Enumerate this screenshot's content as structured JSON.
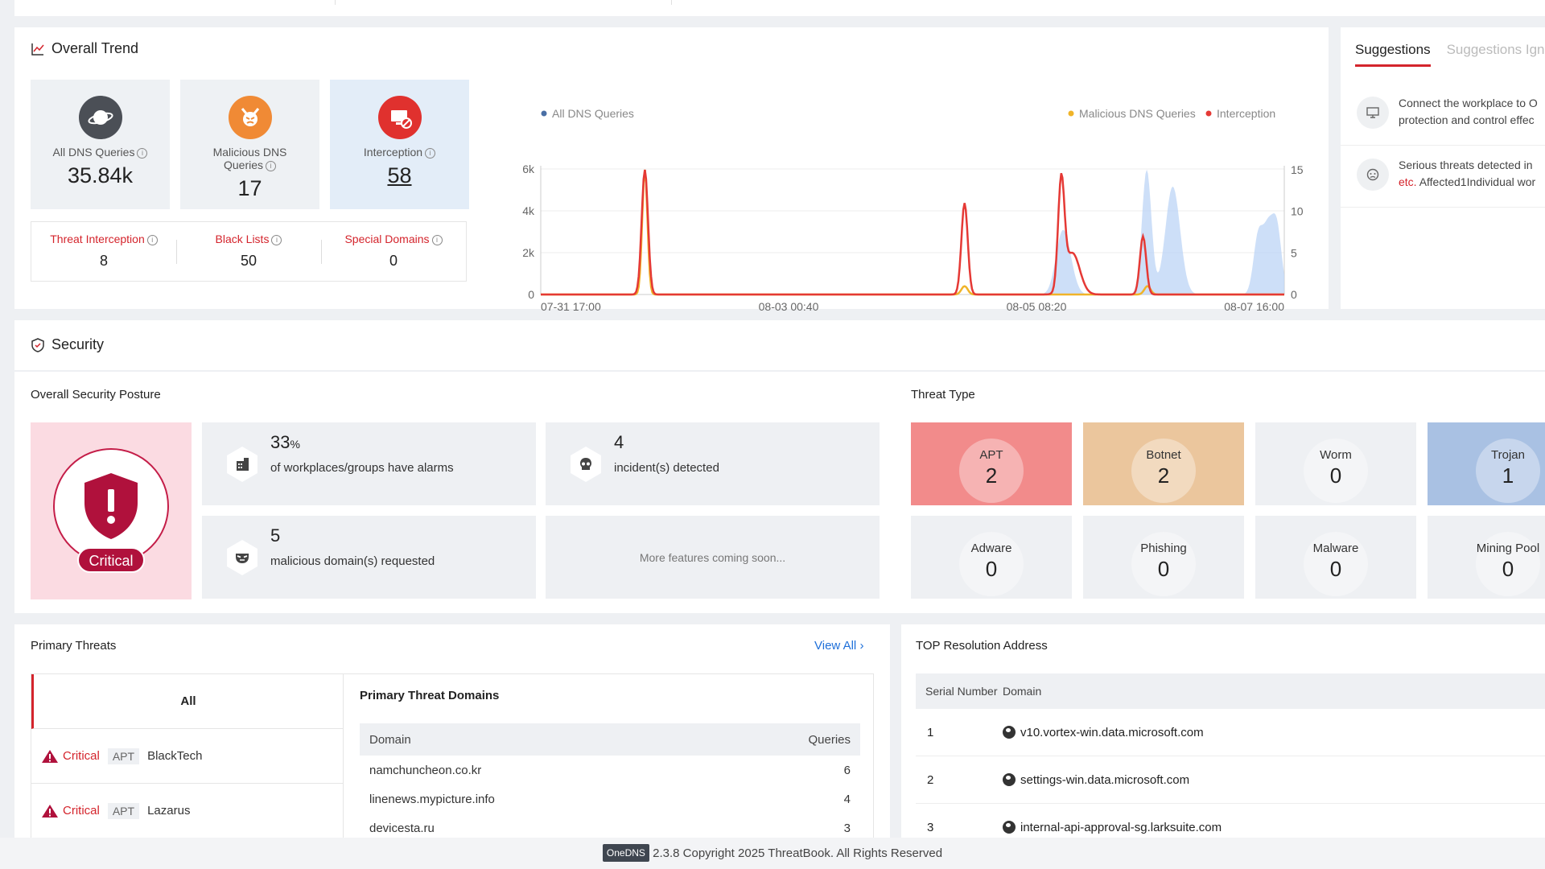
{
  "overall_trend": {
    "title": "Overall Trend",
    "kpis": [
      {
        "label": "All DNS Queries",
        "value": "35.84k",
        "icon": "planet-icon",
        "color": "#4b4f56"
      },
      {
        "label": "Malicious DNS Queries",
        "value": "17",
        "icon": "devil-icon",
        "color": "#f08a35"
      },
      {
        "label": "Interception",
        "value": "58",
        "icon": "blocked-monitor-icon",
        "color": "#e0312e"
      }
    ],
    "sub_kpis": [
      {
        "label": "Threat Interception",
        "value": "8"
      },
      {
        "label": "Black Lists",
        "value": "50"
      },
      {
        "label": "Special Domains",
        "value": "0"
      }
    ]
  },
  "chart_data": {
    "type": "line",
    "legend": [
      "All DNS Queries",
      "Malicious DNS Queries",
      "Interception"
    ],
    "colors": {
      "all": "#4a6fa5",
      "malicious": "#f0b429",
      "interception": "#e53935",
      "area": "#bcd4f5"
    },
    "x_ticks": [
      "07-31 17:00",
      "08-03 00:40",
      "08-05 08:20",
      "08-07 16:00"
    ],
    "y_left_ticks": [
      "0",
      "2k",
      "4k",
      "6k"
    ],
    "y_right_ticks": [
      "0",
      "5",
      "10",
      "15"
    ],
    "ylim_left": [
      0,
      6000
    ],
    "ylim_right": [
      0,
      18
    ],
    "xlim": [
      0,
      100
    ],
    "all_dns_peaks": [
      [
        14,
        0,
        1.4
      ],
      [
        68.5,
        0,
        1.5
      ],
      [
        70,
        6,
        1.2
      ],
      [
        71,
        3,
        1.2
      ],
      [
        81.5,
        15,
        0.9
      ],
      [
        85,
        13,
        1.4
      ],
      [
        96.5,
        7,
        0.9
      ],
      [
        97.8,
        7,
        0.9
      ],
      [
        99,
        8,
        0.9
      ]
    ],
    "interception_peaks": [
      [
        14,
        15,
        0.6
      ],
      [
        57,
        11,
        0.6
      ],
      [
        70,
        13,
        0.6
      ],
      [
        71.5,
        5,
        1.4
      ],
      [
        81,
        7,
        0.6
      ]
    ],
    "malicious_peaks": [
      [
        14,
        15,
        0.5
      ],
      [
        57,
        1,
        0.6
      ],
      [
        81.6,
        1,
        0.6
      ]
    ]
  },
  "suggestions": {
    "tabs": [
      "Suggestions",
      "Suggestions Ign"
    ],
    "items": [
      {
        "line1": "Connect the workplace to O",
        "line2": "protection and control effec",
        "icon": "monitor-icon"
      },
      {
        "line1": "Serious threats detected in",
        "line2_red": "etc.",
        "line2": " Affected1Individual wor",
        "icon": "alert-face-icon"
      }
    ]
  },
  "security": {
    "title": "Security",
    "posture_title": "Overall Security Posture",
    "posture_level": "Critical",
    "stats": [
      {
        "num": "33",
        "unit": "%",
        "desc": "of workplaces/groups have alarms",
        "icon": "building-icon"
      },
      {
        "num": "4",
        "unit": "",
        "desc": "incident(s) detected",
        "icon": "skull-icon"
      },
      {
        "num": "5",
        "unit": "",
        "desc": "malicious domain(s) requested",
        "icon": "mask-icon"
      },
      {
        "num": "",
        "unit": "",
        "desc": "More features coming soon..."
      }
    ],
    "threat_type_title": "Threat Type",
    "threat_types": [
      {
        "name": "APT",
        "count": "2",
        "color": "#f28b8b"
      },
      {
        "name": "Botnet",
        "count": "2",
        "color": "#ebc69d"
      },
      {
        "name": "Worm",
        "count": "0",
        "color": "#eef0f3"
      },
      {
        "name": "Trojan",
        "count": "1",
        "color": "#a9c1e3"
      },
      {
        "name": "Adware",
        "count": "0",
        "color": "#eef0f3"
      },
      {
        "name": "Phishing",
        "count": "0",
        "color": "#eef0f3"
      },
      {
        "name": "Malware",
        "count": "0",
        "color": "#eef0f3"
      },
      {
        "name": "Mining Pool",
        "count": "0",
        "color": "#eef0f3"
      }
    ]
  },
  "primary_threats": {
    "title": "Primary Threats",
    "view_all": "View All",
    "all_label": "All",
    "rows": [
      {
        "level": "Critical",
        "type": "APT",
        "name": "BlackTech"
      },
      {
        "level": "Critical",
        "type": "APT",
        "name": "Lazarus"
      }
    ],
    "domains_title": "Primary Threat Domains",
    "domain_header": "Domain",
    "queries_header": "Queries",
    "domains": [
      {
        "domain": "namchuncheon.co.kr",
        "queries": "6"
      },
      {
        "domain": "linenews.mypicture.info",
        "queries": "4"
      },
      {
        "domain": "devicesta.ru",
        "queries": "3"
      }
    ]
  },
  "top_resolution": {
    "title": "TOP Resolution Address",
    "serial_header": "Serial Number",
    "domain_header": "Domain",
    "rows": [
      {
        "n": "1",
        "domain": "v10.vortex-win.data.microsoft.com"
      },
      {
        "n": "2",
        "domain": "settings-win.data.microsoft.com"
      },
      {
        "n": "3",
        "domain": "internal-api-approval-sg.larksuite.com"
      }
    ]
  },
  "footer": {
    "logo": "OneDNS",
    "text": "2.3.8 Copyright 2025 ThreatBook. All Rights Reserved"
  }
}
